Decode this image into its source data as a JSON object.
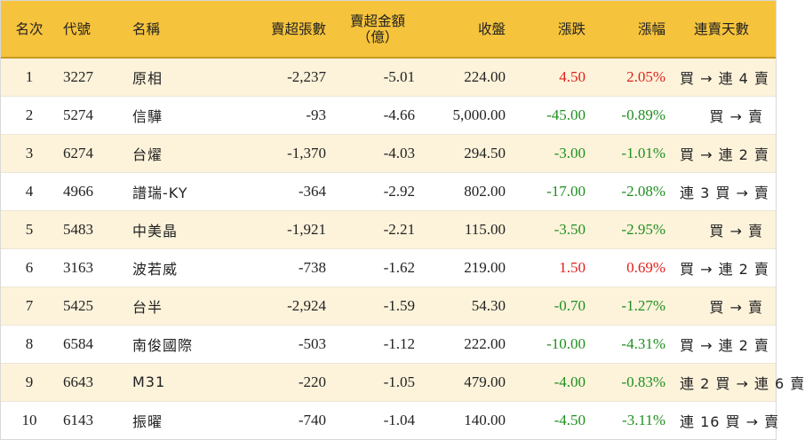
{
  "headers": {
    "rank": "名次",
    "code": "代號",
    "name": "名稱",
    "net_sell_volume": "賣超張數",
    "net_sell_amount_line1": "賣超金額",
    "net_sell_amount_line2": "（億）",
    "close": "收盤",
    "change": "漲跌",
    "change_pct": "漲幅",
    "streak": "連賣天數"
  },
  "colors": {
    "header_bg": "#f6c33c",
    "stripe_bg": "#fdf3db",
    "up": "#e0201c",
    "down": "#1f8f1f"
  },
  "rows": [
    {
      "rank": "1",
      "code": "3227",
      "name": "原相",
      "volume": "-2,237",
      "amount": "-5.01",
      "close": "224.00",
      "change": "4.50",
      "pct": "2.05%",
      "direction": "up",
      "streak": "買 → 連 4 賣"
    },
    {
      "rank": "2",
      "code": "5274",
      "name": "信驊",
      "volume": "-93",
      "amount": "-4.66",
      "close": "5,000.00",
      "change": "-45.00",
      "pct": "-0.89%",
      "direction": "down",
      "streak": "買 → 賣"
    },
    {
      "rank": "3",
      "code": "6274",
      "name": "台燿",
      "volume": "-1,370",
      "amount": "-4.03",
      "close": "294.50",
      "change": "-3.00",
      "pct": "-1.01%",
      "direction": "down",
      "streak": "買 → 連 2 賣"
    },
    {
      "rank": "4",
      "code": "4966",
      "name": "譜瑞-KY",
      "volume": "-364",
      "amount": "-2.92",
      "close": "802.00",
      "change": "-17.00",
      "pct": "-2.08%",
      "direction": "down",
      "streak": "連 3 買 → 賣"
    },
    {
      "rank": "5",
      "code": "5483",
      "name": "中美晶",
      "volume": "-1,921",
      "amount": "-2.21",
      "close": "115.00",
      "change": "-3.50",
      "pct": "-2.95%",
      "direction": "down",
      "streak": "買 → 賣"
    },
    {
      "rank": "6",
      "code": "3163",
      "name": "波若威",
      "volume": "-738",
      "amount": "-1.62",
      "close": "219.00",
      "change": "1.50",
      "pct": "0.69%",
      "direction": "up",
      "streak": "買 → 連 2 賣"
    },
    {
      "rank": "7",
      "code": "5425",
      "name": "台半",
      "volume": "-2,924",
      "amount": "-1.59",
      "close": "54.30",
      "change": "-0.70",
      "pct": "-1.27%",
      "direction": "down",
      "streak": "買 → 賣"
    },
    {
      "rank": "8",
      "code": "6584",
      "name": "南俊國際",
      "volume": "-503",
      "amount": "-1.12",
      "close": "222.00",
      "change": "-10.00",
      "pct": "-4.31%",
      "direction": "down",
      "streak": "買 → 連 2 賣"
    },
    {
      "rank": "9",
      "code": "6643",
      "name": "M31",
      "volume": "-220",
      "amount": "-1.05",
      "close": "479.00",
      "change": "-4.00",
      "pct": "-0.83%",
      "direction": "down",
      "streak": "連 2 買 → 連 6 賣"
    },
    {
      "rank": "10",
      "code": "6143",
      "name": "振曜",
      "volume": "-740",
      "amount": "-1.04",
      "close": "140.00",
      "change": "-4.50",
      "pct": "-3.11%",
      "direction": "down",
      "streak": "連 16 買 → 賣"
    }
  ]
}
